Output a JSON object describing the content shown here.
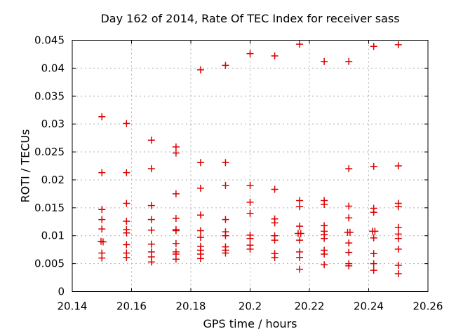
{
  "chart_data": {
    "type": "scatter",
    "title": "Day 162 of 2014, Rate Of TEC Index for receiver sass",
    "xlabel": "GPS time / hours",
    "ylabel": "ROTI / TECUs",
    "xlim": [
      20.14,
      20.26
    ],
    "ylim": [
      0,
      0.045
    ],
    "xticks": [
      20.14,
      20.16,
      20.18,
      20.2,
      20.22,
      20.24,
      20.26
    ],
    "xtick_labels": [
      "20.14",
      "20.16",
      "20.18",
      "20.2",
      "20.22",
      "20.24",
      "20.26"
    ],
    "yticks": [
      0,
      0.005,
      0.01,
      0.015,
      0.02,
      0.025,
      0.03,
      0.035,
      0.04,
      0.045
    ],
    "ytick_labels": [
      "0",
      "0.005",
      "0.01",
      "0.015",
      "0.02",
      "0.025",
      "0.03",
      "0.035",
      "0.04",
      "0.045"
    ],
    "grid": true,
    "legend": "none",
    "background_color": "#ffffff",
    "border_color": "#000000",
    "grid_color": "#b0b0b0",
    "marker": {
      "shape": "plus",
      "color": "#dd0000",
      "size": 10
    },
    "series": [
      {
        "name": "ROTI",
        "points": [
          [
            20.15,
            0.0313
          ],
          [
            20.15,
            0.0213
          ],
          [
            20.15,
            0.0147
          ],
          [
            20.15,
            0.0129
          ],
          [
            20.15,
            0.0112
          ],
          [
            20.1497,
            0.009
          ],
          [
            20.1504,
            0.0089
          ],
          [
            20.15,
            0.0069
          ],
          [
            20.15,
            0.006
          ],
          [
            20.1583,
            0.0301
          ],
          [
            20.1583,
            0.0213
          ],
          [
            20.1583,
            0.0158
          ],
          [
            20.1583,
            0.0126
          ],
          [
            20.1583,
            0.0111
          ],
          [
            20.1583,
            0.0105
          ],
          [
            20.1583,
            0.0084
          ],
          [
            20.1583,
            0.0069
          ],
          [
            20.1583,
            0.0061
          ],
          [
            20.1667,
            0.0271
          ],
          [
            20.1667,
            0.022
          ],
          [
            20.1667,
            0.0154
          ],
          [
            20.1667,
            0.0129
          ],
          [
            20.1667,
            0.011
          ],
          [
            20.1667,
            0.0085
          ],
          [
            20.1667,
            0.0071
          ],
          [
            20.1667,
            0.0062
          ],
          [
            20.1667,
            0.0053
          ],
          [
            20.175,
            0.0259
          ],
          [
            20.175,
            0.0248
          ],
          [
            20.175,
            0.0175
          ],
          [
            20.175,
            0.0131
          ],
          [
            20.175,
            0.0111
          ],
          [
            20.175,
            0.0109
          ],
          [
            20.175,
            0.0086
          ],
          [
            20.175,
            0.0071
          ],
          [
            20.175,
            0.0067
          ],
          [
            20.175,
            0.0058
          ],
          [
            20.1833,
            0.0397
          ],
          [
            20.1833,
            0.0231
          ],
          [
            20.1833,
            0.0185
          ],
          [
            20.1833,
            0.0137
          ],
          [
            20.1833,
            0.0109
          ],
          [
            20.1833,
            0.0097
          ],
          [
            20.1833,
            0.0081
          ],
          [
            20.1833,
            0.0074
          ],
          [
            20.1833,
            0.0067
          ],
          [
            20.1833,
            0.0059
          ],
          [
            20.1917,
            0.0405
          ],
          [
            20.1917,
            0.0231
          ],
          [
            20.1917,
            0.019
          ],
          [
            20.1917,
            0.0129
          ],
          [
            20.1917,
            0.0107
          ],
          [
            20.1917,
            0.01
          ],
          [
            20.1917,
            0.008
          ],
          [
            20.1917,
            0.0074
          ],
          [
            20.1917,
            0.0069
          ],
          [
            20.2,
            0.0426
          ],
          [
            20.2,
            0.019
          ],
          [
            20.2,
            0.016
          ],
          [
            20.2,
            0.014
          ],
          [
            20.2,
            0.0101
          ],
          [
            20.2,
            0.0095
          ],
          [
            20.2,
            0.0083
          ],
          [
            20.2,
            0.0076
          ],
          [
            20.2083,
            0.0422
          ],
          [
            20.2083,
            0.0183
          ],
          [
            20.2083,
            0.013
          ],
          [
            20.2083,
            0.0123
          ],
          [
            20.2083,
            0.01
          ],
          [
            20.2083,
            0.0092
          ],
          [
            20.2083,
            0.0068
          ],
          [
            20.2083,
            0.0061
          ],
          [
            20.2167,
            0.0443
          ],
          [
            20.2167,
            0.0163
          ],
          [
            20.2167,
            0.0152
          ],
          [
            20.2167,
            0.0117
          ],
          [
            20.2162,
            0.0104
          ],
          [
            20.2171,
            0.0104
          ],
          [
            20.2167,
            0.0092
          ],
          [
            20.2167,
            0.0071
          ],
          [
            20.2167,
            0.0061
          ],
          [
            20.2167,
            0.004
          ],
          [
            20.225,
            0.0412
          ],
          [
            20.225,
            0.0163
          ],
          [
            20.225,
            0.0156
          ],
          [
            20.225,
            0.0118
          ],
          [
            20.225,
            0.0108
          ],
          [
            20.225,
            0.0102
          ],
          [
            20.225,
            0.0095
          ],
          [
            20.225,
            0.0074
          ],
          [
            20.225,
            0.0067
          ],
          [
            20.225,
            0.0048
          ],
          [
            20.2333,
            0.0412
          ],
          [
            20.2333,
            0.022
          ],
          [
            20.2333,
            0.0153
          ],
          [
            20.2333,
            0.0132
          ],
          [
            20.2329,
            0.0106
          ],
          [
            20.2337,
            0.0106
          ],
          [
            20.2333,
            0.0087
          ],
          [
            20.2333,
            0.007
          ],
          [
            20.2333,
            0.005
          ],
          [
            20.2333,
            0.0046
          ],
          [
            20.2417,
            0.0439
          ],
          [
            20.2417,
            0.0224
          ],
          [
            20.2417,
            0.0149
          ],
          [
            20.2417,
            0.0142
          ],
          [
            20.2413,
            0.0108
          ],
          [
            20.2421,
            0.0108
          ],
          [
            20.2417,
            0.0096
          ],
          [
            20.2417,
            0.0068
          ],
          [
            20.2417,
            0.005
          ],
          [
            20.2417,
            0.0038
          ],
          [
            20.25,
            0.0442
          ],
          [
            20.25,
            0.0225
          ],
          [
            20.25,
            0.0158
          ],
          [
            20.25,
            0.0152
          ],
          [
            20.25,
            0.0115
          ],
          [
            20.25,
            0.0103
          ],
          [
            20.25,
            0.0095
          ],
          [
            20.25,
            0.0076
          ],
          [
            20.25,
            0.0047
          ],
          [
            20.25,
            0.0032
          ]
        ]
      }
    ]
  }
}
